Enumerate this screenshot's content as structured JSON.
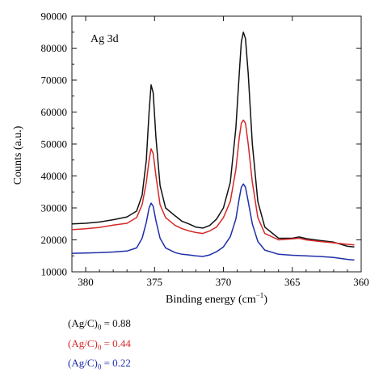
{
  "chart_data": {
    "type": "line",
    "annotation": "Ag 3d",
    "xlabel": "Binding energy (cm",
    "xlabel_sup": "−1",
    "xlabel_close": ")",
    "ylabel": "Counts (a.u.)",
    "xlim": [
      381,
      360
    ],
    "ylim": [
      10000,
      90000
    ],
    "x_inverted": true,
    "xticks": [
      380,
      375,
      370,
      365,
      360
    ],
    "yticks": [
      10000,
      20000,
      30000,
      40000,
      50000,
      60000,
      70000,
      80000,
      90000
    ],
    "grid": false,
    "legend_position": "below-left",
    "series": [
      {
        "label_main": "(Ag/C)",
        "label_sub": "0",
        "label_value": " = 0.88",
        "color": "#111111",
        "points": [
          [
            381,
            25000
          ],
          [
            380,
            25200
          ],
          [
            379,
            25600
          ],
          [
            378,
            26300
          ],
          [
            377,
            27200
          ],
          [
            376.3,
            29000
          ],
          [
            375.9,
            34000
          ],
          [
            375.6,
            45000
          ],
          [
            375.4,
            60000
          ],
          [
            375.25,
            68500
          ],
          [
            375.1,
            66000
          ],
          [
            374.9,
            52000
          ],
          [
            374.6,
            37000
          ],
          [
            374.2,
            30000
          ],
          [
            373.5,
            27500
          ],
          [
            373,
            25800
          ],
          [
            372.5,
            25000
          ],
          [
            372,
            24000
          ],
          [
            371.5,
            23700
          ],
          [
            371,
            24500
          ],
          [
            370.5,
            26500
          ],
          [
            370,
            30000
          ],
          [
            369.5,
            38000
          ],
          [
            369.1,
            55000
          ],
          [
            368.85,
            72000
          ],
          [
            368.7,
            82000
          ],
          [
            368.55,
            85000
          ],
          [
            368.4,
            83000
          ],
          [
            368.2,
            72000
          ],
          [
            367.9,
            50000
          ],
          [
            367.5,
            32000
          ],
          [
            367,
            24000
          ],
          [
            366,
            20500
          ],
          [
            365,
            20500
          ],
          [
            364.5,
            20900
          ],
          [
            364,
            20400
          ],
          [
            363,
            19800
          ],
          [
            362,
            19300
          ],
          [
            361,
            18000
          ],
          [
            360.5,
            17800
          ]
        ]
      },
      {
        "label_main": "(Ag/C)",
        "label_sub": "0",
        "label_value": " = 0.44",
        "color": "#d62828",
        "points": [
          [
            381,
            23200
          ],
          [
            380,
            23500
          ],
          [
            379,
            23900
          ],
          [
            378,
            24600
          ],
          [
            377,
            25200
          ],
          [
            376.3,
            27000
          ],
          [
            375.9,
            31000
          ],
          [
            375.6,
            38000
          ],
          [
            375.4,
            45000
          ],
          [
            375.25,
            48500
          ],
          [
            375.1,
            47000
          ],
          [
            374.9,
            40000
          ],
          [
            374.6,
            31000
          ],
          [
            374.2,
            27000
          ],
          [
            373.5,
            24500
          ],
          [
            373,
            23500
          ],
          [
            372.5,
            22800
          ],
          [
            372,
            22300
          ],
          [
            371.5,
            22000
          ],
          [
            371,
            22800
          ],
          [
            370.5,
            24000
          ],
          [
            370,
            27000
          ],
          [
            369.5,
            32000
          ],
          [
            369.1,
            42000
          ],
          [
            368.85,
            52000
          ],
          [
            368.7,
            56500
          ],
          [
            368.55,
            57500
          ],
          [
            368.4,
            56500
          ],
          [
            368.2,
            50000
          ],
          [
            367.9,
            38000
          ],
          [
            367.5,
            27000
          ],
          [
            367,
            22000
          ],
          [
            366,
            20000
          ],
          [
            365,
            20300
          ],
          [
            364.5,
            20500
          ],
          [
            364,
            20000
          ],
          [
            363,
            19500
          ],
          [
            362,
            19100
          ],
          [
            361,
            18600
          ],
          [
            360.5,
            18400
          ]
        ]
      },
      {
        "label_main": "(Ag/C)",
        "label_sub": "0",
        "label_value": " = 0.22",
        "color": "#1f2fa8",
        "points": [
          [
            381,
            15800
          ],
          [
            380,
            15900
          ],
          [
            379,
            16000
          ],
          [
            378,
            16200
          ],
          [
            377,
            16500
          ],
          [
            376.3,
            17500
          ],
          [
            375.9,
            20500
          ],
          [
            375.6,
            25500
          ],
          [
            375.4,
            30000
          ],
          [
            375.25,
            31500
          ],
          [
            375.1,
            30500
          ],
          [
            374.9,
            26000
          ],
          [
            374.6,
            20500
          ],
          [
            374.2,
            17500
          ],
          [
            373.5,
            16000
          ],
          [
            373,
            15500
          ],
          [
            372.5,
            15300
          ],
          [
            372,
            15000
          ],
          [
            371.5,
            14800
          ],
          [
            371,
            15300
          ],
          [
            370.5,
            16300
          ],
          [
            370,
            17800
          ],
          [
            369.5,
            21000
          ],
          [
            369.1,
            26500
          ],
          [
            368.85,
            33000
          ],
          [
            368.7,
            36500
          ],
          [
            368.55,
            37500
          ],
          [
            368.4,
            36500
          ],
          [
            368.2,
            32000
          ],
          [
            367.9,
            25000
          ],
          [
            367.5,
            19500
          ],
          [
            367,
            16800
          ],
          [
            366,
            15500
          ],
          [
            365,
            15200
          ],
          [
            364,
            15000
          ],
          [
            363,
            14800
          ],
          [
            362,
            14500
          ],
          [
            361,
            13900
          ],
          [
            360.5,
            13700
          ]
        ]
      }
    ]
  }
}
